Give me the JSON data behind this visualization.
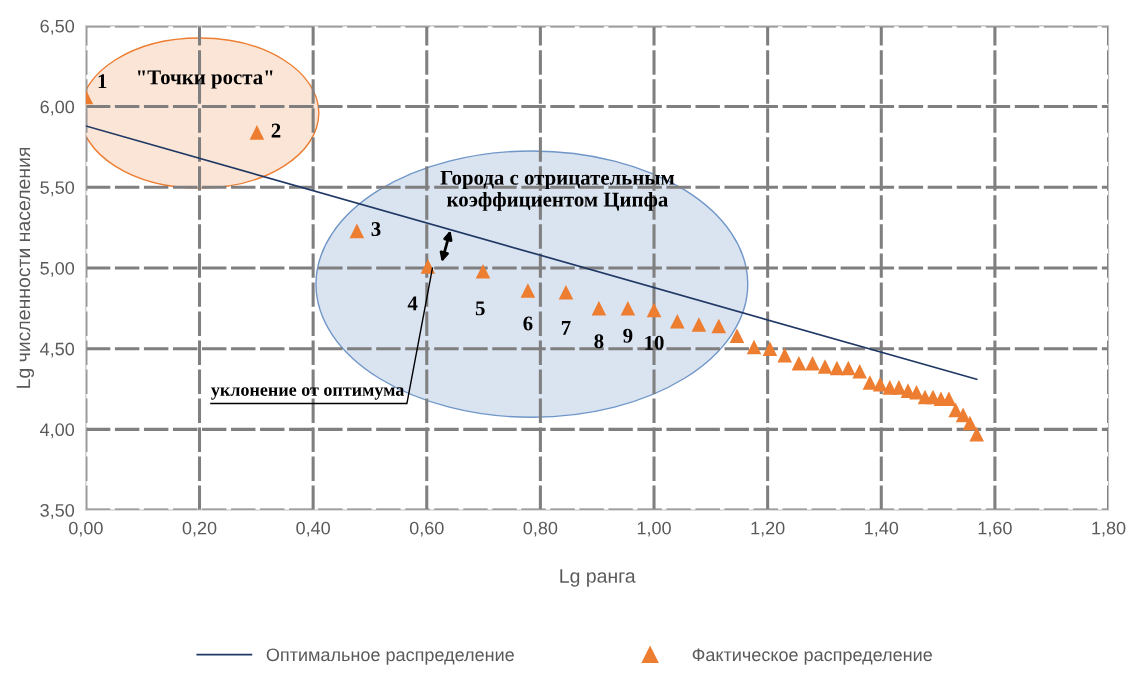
{
  "chart_data": {
    "type": "scatter",
    "xlabel": "Lg ранга",
    "ylabel": "Lg численности населения",
    "xlim": [
      0,
      1.8
    ],
    "ylim": [
      3.5,
      6.5
    ],
    "xticks": [
      {
        "value": 0,
        "label": "0,00"
      },
      {
        "value": 0.2,
        "label": "0,20"
      },
      {
        "value": 0.4,
        "label": "0,40"
      },
      {
        "value": 0.6,
        "label": "0,60"
      },
      {
        "value": 0.8,
        "label": "0,80"
      },
      {
        "value": 1.0,
        "label": "1,00"
      },
      {
        "value": 1.2,
        "label": "1,20"
      },
      {
        "value": 1.4,
        "label": "1,40"
      },
      {
        "value": 1.6,
        "label": "1,60"
      },
      {
        "value": 1.8,
        "label": "1,80"
      }
    ],
    "yticks": [
      {
        "value": 3.5,
        "label": "3,50"
      },
      {
        "value": 4.0,
        "label": "4,00"
      },
      {
        "value": 4.5,
        "label": "4,50"
      },
      {
        "value": 5.0,
        "label": "5,00"
      },
      {
        "value": 5.5,
        "label": "5,50"
      },
      {
        "value": 6.0,
        "label": "6,00"
      },
      {
        "value": 6.5,
        "label": "6,50"
      }
    ],
    "grid": true,
    "legend": "bottom",
    "series": [
      {
        "name": "Оптимальное распределение",
        "type": "line",
        "color": "#203864",
        "marker": "none",
        "x": [
          0,
          1.568
        ],
        "values": [
          5.88,
          4.31
        ]
      },
      {
        "name": "Фактическое распределение",
        "color": "#ed7d31",
        "marker": "triangle",
        "x": [
          0,
          0.301,
          0.477,
          0.602,
          0.699,
          0.778,
          0.845,
          0.903,
          0.954,
          1.0,
          1.041,
          1.079,
          1.114,
          1.146,
          1.176,
          1.204,
          1.23,
          1.255,
          1.279,
          1.301,
          1.322,
          1.342,
          1.362,
          1.38,
          1.398,
          1.415,
          1.431,
          1.447,
          1.462,
          1.477,
          1.491,
          1.505,
          1.519,
          1.531,
          1.544,
          1.556,
          1.568
        ],
        "values": [
          6.06,
          5.84,
          5.23,
          5.01,
          4.98,
          4.86,
          4.85,
          4.75,
          4.75,
          4.74,
          4.67,
          4.65,
          4.64,
          4.58,
          4.51,
          4.5,
          4.46,
          4.41,
          4.41,
          4.39,
          4.38,
          4.38,
          4.36,
          4.29,
          4.28,
          4.26,
          4.26,
          4.24,
          4.23,
          4.2,
          4.2,
          4.19,
          4.19,
          4.12,
          4.09,
          4.04,
          3.97
        ]
      }
    ],
    "annotations": [
      {
        "text": "1",
        "x": 0,
        "y": 6.06
      },
      {
        "text": "2",
        "x": 0.301,
        "y": 5.84
      },
      {
        "text": "3",
        "x": 0.477,
        "y": 5.23
      },
      {
        "text": "4",
        "x": 0.602,
        "y": 5.01
      },
      {
        "text": "5",
        "x": 0.699,
        "y": 4.98
      },
      {
        "text": "6",
        "x": 0.778,
        "y": 4.86
      },
      {
        "text": "7",
        "x": 0.845,
        "y": 4.85
      },
      {
        "text": "8",
        "x": 0.903,
        "y": 4.75
      },
      {
        "text": "9",
        "x": 0.954,
        "y": 4.75
      },
      {
        "text": "10",
        "x": 1.0,
        "y": 4.74
      },
      "\"Точки роста\"",
      "Города с отрицательным\nкоэффициентом Ципфа",
      {
        "text": "уклонение от оптимума",
        "x": 0.61,
        "y": 5.0
      }
    ]
  }
}
